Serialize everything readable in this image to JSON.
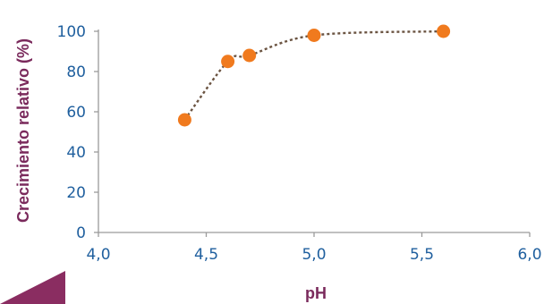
{
  "colors": {
    "axis_title": "#7a2a5c",
    "tick_label": "#1f5f9e",
    "axis_line": "#9a9a9a",
    "marker": "#f07a1e",
    "trend_line": "#6b5442",
    "corner_shape": "#8a2d61"
  },
  "chart_data": {
    "type": "scatter",
    "title": "",
    "xlabel": "pH",
    "ylabel": "Crecimiento relativo (%)",
    "xlim": [
      4.0,
      6.0
    ],
    "ylim": [
      0,
      100
    ],
    "x_ticks": [
      4.0,
      4.5,
      5.0,
      5.5,
      6.0
    ],
    "x_tick_labels": [
      "4,0",
      "4,5",
      "5,0",
      "5,5",
      "6,0"
    ],
    "y_ticks": [
      0,
      20,
      40,
      60,
      80,
      100
    ],
    "y_tick_labels": [
      "0",
      "20",
      "40",
      "60",
      "80",
      "100"
    ],
    "grid": false,
    "trendline": "dotted",
    "series": [
      {
        "x": [
          4.4,
          4.6,
          4.7,
          5.0,
          5.6
        ],
        "y": [
          56,
          85,
          88,
          98,
          100
        ]
      }
    ]
  }
}
